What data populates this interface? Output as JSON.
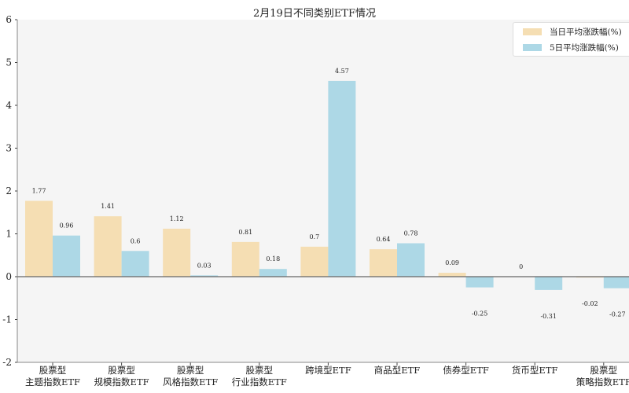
{
  "chart_data": {
    "type": "bar",
    "title": "2月19日不同类别ETF情况",
    "categories": [
      [
        "股票型",
        "主题指数ETF"
      ],
      [
        "股票型",
        "规模指数ETF"
      ],
      [
        "股票型",
        "风格指数ETF"
      ],
      [
        "股票型",
        "行业指数ETF"
      ],
      [
        "跨境型ETF"
      ],
      [
        "商品型ETF"
      ],
      [
        "债券型ETF"
      ],
      [
        "货币型ETF"
      ],
      [
        "股票型",
        "策略指数ETF"
      ]
    ],
    "series": [
      {
        "name": "当日平均涨跌幅(%)",
        "color": "#f5deb3",
        "values": [
          1.77,
          1.41,
          1.12,
          0.81,
          0.7,
          0.64,
          0.09,
          0.0,
          -0.02
        ]
      },
      {
        "name": "5日平均涨跌幅(%)",
        "color": "#add8e6",
        "values": [
          0.96,
          0.6,
          0.03,
          0.18,
          4.57,
          0.78,
          -0.25,
          -0.31,
          -0.27
        ]
      }
    ],
    "ylim": [
      -2,
      6
    ],
    "yticks": [
      -2,
      -1,
      0,
      1,
      2,
      3,
      4,
      5,
      6
    ],
    "grid": false,
    "legend": "top-right",
    "background": "#f5f5f5"
  }
}
